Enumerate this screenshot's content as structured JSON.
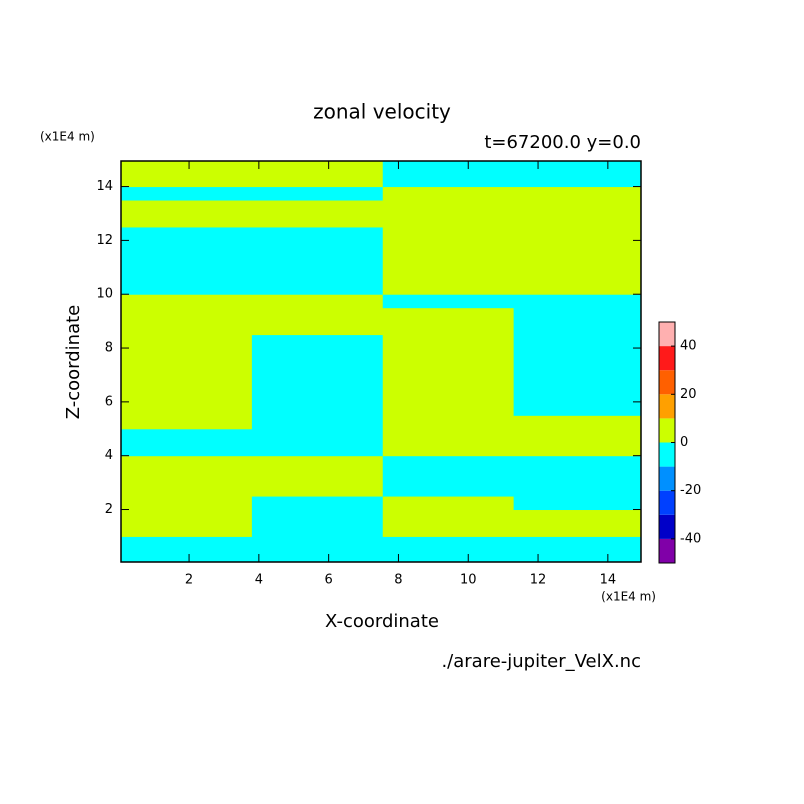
{
  "chart_data": {
    "type": "contour",
    "title": "zonal velocity",
    "subtitle": "t=67200.0 y=0.0",
    "xlabel": "X-coordinate",
    "ylabel": "Z-coordinate",
    "xunit": "(x1E4 m)",
    "yunit": "(x1E4 m)",
    "source": "./arare-jupiter_VelX.nc",
    "xlim": [
      0.05,
      14.95
    ],
    "ylim": [
      0.05,
      14.95
    ],
    "xticks": [
      2,
      4,
      6,
      8,
      10,
      12,
      14
    ],
    "yticks": [
      2,
      4,
      6,
      8,
      10,
      12,
      14
    ],
    "x_edges": [
      0.05,
      3.8,
      7.55,
      11.3,
      14.95
    ],
    "z_edges": [
      0.05,
      1,
      2,
      2.5,
      4,
      5,
      5.5,
      8.5,
      9.5,
      10,
      12.5,
      13.5,
      14,
      14.95
    ],
    "field": [
      [
        -5,
        -5,
        -5,
        -5
      ],
      [
        5,
        -5,
        5,
        5
      ],
      [
        5,
        -5,
        5,
        -5
      ],
      [
        5,
        5,
        -5,
        -5
      ],
      [
        -5,
        -5,
        5,
        5
      ],
      [
        5,
        -5,
        5,
        5
      ],
      [
        5,
        -5,
        5,
        -5
      ],
      [
        5,
        5,
        5,
        -5
      ],
      [
        5,
        5,
        -5,
        -5
      ],
      [
        -5,
        -5,
        5,
        5
      ],
      [
        5,
        5,
        5,
        5
      ],
      [
        -5,
        -5,
        5,
        5
      ],
      [
        5,
        5,
        -5,
        -5
      ]
    ],
    "levels": [
      -50,
      -40,
      -30,
      -20,
      -10,
      0,
      10,
      20,
      30,
      40,
      50
    ],
    "colors": [
      "#8000a8",
      "#0000c8",
      "#0040ff",
      "#0090ff",
      "#00ffff",
      "#ccff00",
      "#ffa000",
      "#ff6000",
      "#ff1a1a",
      "#ffb0b0"
    ],
    "colorbar_ticks": [
      40,
      20,
      0,
      -20,
      -40
    ]
  }
}
